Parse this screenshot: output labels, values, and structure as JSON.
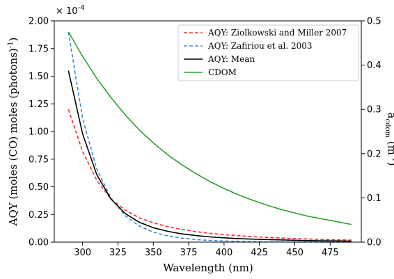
{
  "chart_data": {
    "type": "line",
    "xlabel": "Wavelength (nm)",
    "ylabel_left": "AQY (moles (CO) moles (photons)",
    "ylabel_left_sup": "-1",
    "ylabel_left_close": ")",
    "ylabel_right_base": "a",
    "ylabel_right_sub": "cdom",
    "ylabel_right_unit": " (m",
    "ylabel_right_sup": "-1",
    "ylabel_right_close": ")",
    "multiplier_prefix": "× 10",
    "multiplier_exp": "-4",
    "xlim": [
      280,
      497
    ],
    "x_ticks": [
      300,
      325,
      350,
      375,
      400,
      425,
      450,
      475
    ],
    "ylim_left": [
      0,
      2.0
    ],
    "y_ticks_left": [
      "0.00",
      "0.25",
      "0.50",
      "0.75",
      "1.00",
      "1.25",
      "1.50",
      "1.75",
      "2.00"
    ],
    "ylim_right": [
      0,
      0.5
    ],
    "y_ticks_right": [
      "0.0",
      "0.1",
      "0.2",
      "0.3",
      "0.4",
      "0.5"
    ],
    "legend_position": "top-right",
    "series": [
      {
        "name": "AQY: Ziolkowski and Miller 2007",
        "axis": "left",
        "color": "#ff2a2a",
        "dash": "dashed",
        "x": [
          290,
          300,
          310,
          320,
          330,
          340,
          350,
          360,
          370,
          380,
          390,
          400,
          410,
          420,
          430,
          440,
          450,
          460,
          470,
          480,
          490
        ],
        "y": [
          1.2,
          0.82,
          0.56,
          0.39,
          0.29,
          0.22,
          0.175,
          0.14,
          0.115,
          0.095,
          0.08,
          0.068,
          0.058,
          0.05,
          0.043,
          0.037,
          0.032,
          0.028,
          0.024,
          0.021,
          0.018
        ]
      },
      {
        "name": "AQY: Zafiriou et al. 2003",
        "axis": "left",
        "color": "#3c8bd0",
        "dash": "dashed",
        "x": [
          290,
          300,
          310,
          320,
          330,
          340,
          350,
          360,
          370,
          380,
          390,
          400,
          410,
          420,
          430,
          440,
          450,
          460,
          470,
          480,
          490
        ],
        "y": [
          1.9,
          1.12,
          0.66,
          0.4,
          0.24,
          0.145,
          0.09,
          0.057,
          0.036,
          0.023,
          0.015,
          0.01,
          0.007,
          0.005,
          0.003,
          0.002,
          0.0015,
          0.001,
          0.0008,
          0.0006,
          0.0005
        ]
      },
      {
        "name": "AQY: Mean",
        "axis": "left",
        "color": "#000000",
        "dash": "solid",
        "x": [
          290,
          300,
          310,
          320,
          330,
          340,
          350,
          360,
          370,
          380,
          390,
          400,
          410,
          420,
          430,
          440,
          450,
          460,
          470,
          480,
          490
        ],
        "y": [
          1.55,
          0.98,
          0.61,
          0.39,
          0.26,
          0.18,
          0.13,
          0.098,
          0.075,
          0.059,
          0.047,
          0.039,
          0.032,
          0.027,
          0.023,
          0.02,
          0.017,
          0.014,
          0.012,
          0.011,
          0.009
        ]
      },
      {
        "name": "CDOM",
        "axis": "right",
        "color": "#2ca02c",
        "dash": "solid",
        "x": [
          290,
          300,
          310,
          320,
          330,
          340,
          350,
          360,
          370,
          380,
          390,
          400,
          410,
          420,
          430,
          440,
          450,
          460,
          470,
          480,
          490
        ],
        "y": [
          0.475,
          0.42,
          0.37,
          0.327,
          0.288,
          0.254,
          0.224,
          0.198,
          0.175,
          0.155,
          0.137,
          0.121,
          0.107,
          0.095,
          0.084,
          0.074,
          0.066,
          0.058,
          0.052,
          0.046,
          0.04
        ]
      }
    ]
  }
}
